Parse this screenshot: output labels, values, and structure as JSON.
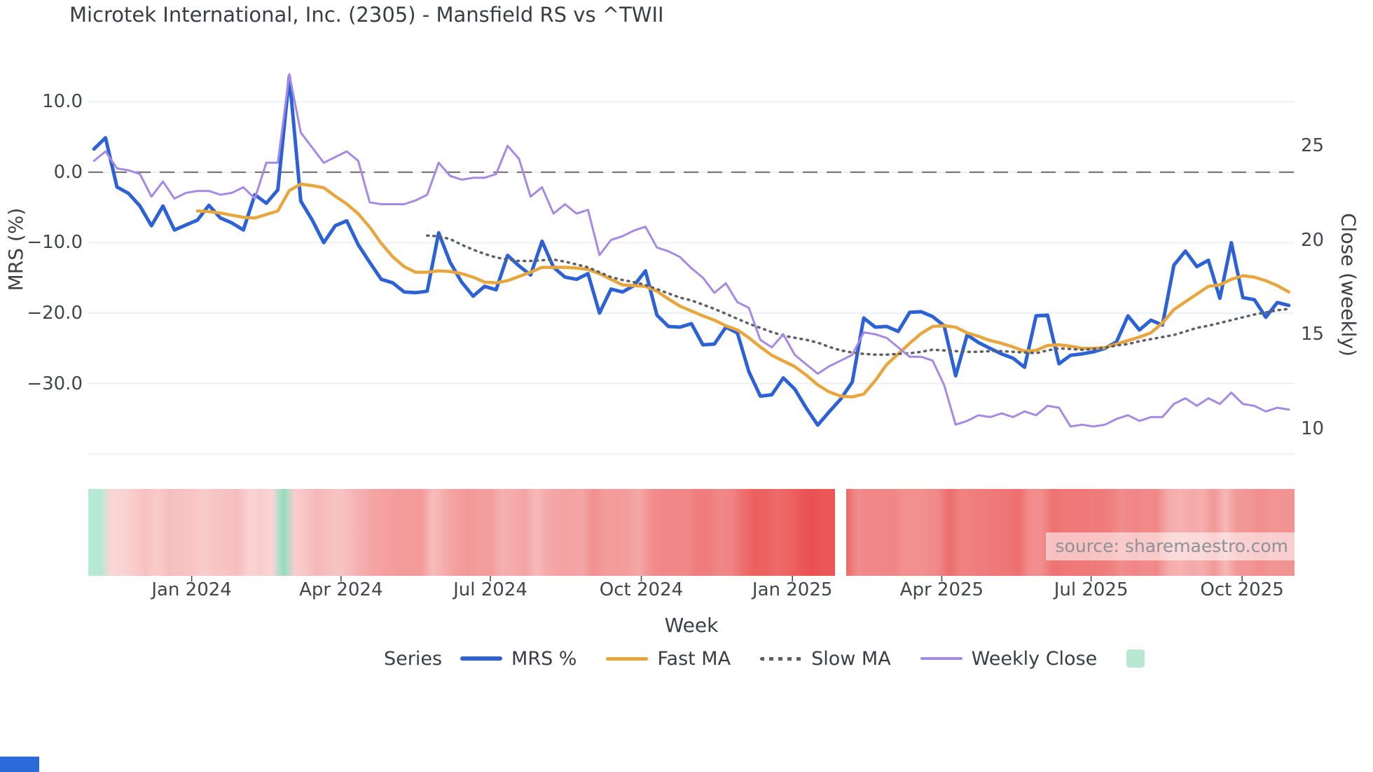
{
  "title": "Microtek International, Inc. (2305) - Mansfield RS vs ^TWII",
  "source": "source: sharemaestro.com",
  "legend": {
    "title": "Series",
    "items": [
      {
        "label": "MRS %"
      },
      {
        "label": "Fast MA"
      },
      {
        "label": "Slow MA"
      },
      {
        "label": "Weekly Close"
      },
      {
        "label": "",
        "type": "heatmap-swatch"
      }
    ]
  },
  "chart_data": {
    "type": "line",
    "title": "Microtek International, Inc. (2305) - Mansfield RS vs ^TWII",
    "x_axis": {
      "label": "Week",
      "tick_labels": [
        "Jan 2024",
        "Apr 2024",
        "Jul 2024",
        "Oct 2024",
        "Jan 2025",
        "Apr 2025",
        "Jul 2025",
        "Oct 2025"
      ],
      "tick_week_positions": [
        9.0,
        22.0,
        35.0,
        48.14,
        61.29,
        74.29,
        87.29,
        100.43
      ]
    },
    "y_left": {
      "label": "MRS (%)",
      "tick_values": [
        10,
        0,
        -10,
        -20,
        -30
      ],
      "tick_labels": [
        "10.0",
        "0.0",
        "−10.0",
        "−20.0",
        "−30.0"
      ],
      "range": [
        -40.2,
        15.5
      ],
      "zero_reference_line": 0
    },
    "y_right": {
      "label": "Close (weekly)",
      "tick_values": [
        25,
        20,
        15,
        10
      ],
      "tick_labels": [
        "25",
        "20",
        "15",
        "10"
      ],
      "range": [
        8.57,
        29.39
      ]
    },
    "weeks": 105,
    "gap_week_index": 65,
    "series": [
      {
        "name": "MRS %",
        "axis": "left",
        "color": "#2d62d6",
        "style": "solid",
        "width": 5,
        "start_index": 0,
        "values": [
          3.3,
          4.9,
          -2.1,
          -3.0,
          -4.8,
          -7.6,
          -4.8,
          -8.2,
          -7.5,
          -6.8,
          -4.7,
          -6.5,
          -7.2,
          -8.2,
          -3.2,
          -4.4,
          -2.5,
          13.6,
          -4.1,
          -6.8,
          -10.0,
          -7.6,
          -6.9,
          -10.3,
          -12.8,
          -15.2,
          -15.7,
          -17.0,
          -17.1,
          -16.9,
          -8.6,
          -12.8,
          -15.6,
          -17.6,
          -16.2,
          -16.7,
          -11.8,
          -13.3,
          -14.6,
          -9.8,
          -13.5,
          -14.9,
          -15.2,
          -14.4,
          -20.0,
          -16.6,
          -17.0,
          -16.1,
          -14.0,
          -20.3,
          -21.9,
          -22.0,
          -21.5,
          -24.5,
          -24.4,
          -22.0,
          -22.8,
          -28.3,
          -31.8,
          -31.6,
          -29.2,
          -30.8,
          -33.5,
          -35.9,
          -34.0,
          -32.2,
          -29.8,
          -20.7,
          -22.0,
          -21.9,
          -22.6,
          -19.9,
          -19.8,
          -20.5,
          -21.8,
          -28.9,
          -23.1,
          -24.2,
          -25.0,
          -25.8,
          -26.4,
          -27.7,
          -20.4,
          -20.3,
          -27.2,
          -26.0,
          -25.8,
          -25.5,
          -25.0,
          -24.1,
          -20.4,
          -22.4,
          -21.0,
          -21.7,
          -13.2,
          -11.2,
          -13.4,
          -12.5,
          -17.9,
          -10.0,
          -17.8,
          -18.1,
          -20.6,
          -18.5,
          -18.9
        ]
      },
      {
        "name": "Fast MA",
        "axis": "left",
        "color": "#e8a63e",
        "style": "solid",
        "width": 4.5,
        "start_index": 9,
        "values": [
          -5.5,
          -5.6,
          -5.8,
          -6.1,
          -6.4,
          -6.5,
          -6.0,
          -5.5,
          -2.6,
          -1.7,
          -1.9,
          -2.2,
          -3.4,
          -4.5,
          -5.9,
          -7.8,
          -10.1,
          -12.0,
          -13.4,
          -14.2,
          -14.2,
          -14.0,
          -14.1,
          -14.4,
          -14.9,
          -15.6,
          -15.7,
          -15.4,
          -14.8,
          -14.2,
          -13.5,
          -13.5,
          -13.5,
          -13.6,
          -13.8,
          -14.4,
          -15.2,
          -16.0,
          -16.1,
          -16.2,
          -16.9,
          -18.0,
          -19.0,
          -19.7,
          -20.4,
          -21.0,
          -21.8,
          -22.4,
          -23.5,
          -24.8,
          -26.0,
          -26.8,
          -27.6,
          -28.8,
          -30.2,
          -31.2,
          -31.8,
          -31.9,
          -31.5,
          -29.6,
          -27.3,
          -25.8,
          -24.3,
          -22.9,
          -21.9,
          -21.8,
          -22.0,
          -22.8,
          -23.3,
          -23.9,
          -24.3,
          -24.8,
          -25.4,
          -25.3,
          -24.6,
          -24.5,
          -24.7,
          -25.0,
          -25.0,
          -24.9,
          -24.4,
          -23.9,
          -23.4,
          -22.8,
          -21.4,
          -19.5,
          -18.4,
          -17.3,
          -16.2,
          -16.0,
          -15.2,
          -14.7,
          -14.9,
          -15.4,
          -16.1,
          -17.0
        ]
      },
      {
        "name": "Slow MA",
        "axis": "left",
        "color": "#5d6066",
        "style": "dotted",
        "width": 3.5,
        "start_index": 29,
        "values": [
          -9.0,
          -9.1,
          -9.5,
          -10.3,
          -11.0,
          -11.6,
          -12.1,
          -12.4,
          -12.6,
          -12.6,
          -12.5,
          -12.4,
          -12.7,
          -13.1,
          -13.5,
          -14.2,
          -14.9,
          -15.3,
          -15.6,
          -16.0,
          -16.6,
          -17.2,
          -17.8,
          -18.2,
          -18.8,
          -19.4,
          -20.1,
          -20.8,
          -21.5,
          -22.1,
          -22.7,
          -23.2,
          -23.5,
          -23.8,
          -24.2,
          -24.8,
          -25.3,
          -25.6,
          -25.8,
          -25.9,
          -25.9,
          -25.8,
          -25.7,
          -25.5,
          -25.2,
          -25.3,
          -25.4,
          -25.5,
          -25.5,
          -25.4,
          -25.4,
          -25.5,
          -25.6,
          -25.7,
          -25.3,
          -25.0,
          -25.1,
          -25.2,
          -25.1,
          -24.9,
          -24.6,
          -24.4,
          -24.0,
          -23.7,
          -23.4,
          -23.1,
          -22.6,
          -22.1,
          -21.8,
          -21.4,
          -21.0,
          -20.6,
          -20.2,
          -19.9,
          -19.6,
          -19.4
        ]
      },
      {
        "name": "Weekly Close",
        "axis": "right",
        "color": "#a689e4",
        "style": "solid",
        "width": 3,
        "start_index": 0,
        "values": [
          24.2,
          24.7,
          23.8,
          23.7,
          23.5,
          22.3,
          23.1,
          22.2,
          22.5,
          22.6,
          22.6,
          22.4,
          22.5,
          22.8,
          22.2,
          24.1,
          24.1,
          28.8,
          25.7,
          24.9,
          24.1,
          24.4,
          24.7,
          24.2,
          22.0,
          21.9,
          21.9,
          21.9,
          22.1,
          22.4,
          24.1,
          23.4,
          23.2,
          23.3,
          23.3,
          23.5,
          25.0,
          24.3,
          22.3,
          22.8,
          21.4,
          21.9,
          21.4,
          21.6,
          19.2,
          20.0,
          20.2,
          20.5,
          20.7,
          19.6,
          19.4,
          19.1,
          18.5,
          18.0,
          17.2,
          17.7,
          16.7,
          16.4,
          14.7,
          14.3,
          15.0,
          13.9,
          13.4,
          12.9,
          13.3,
          13.6,
          13.9,
          15.1,
          15.0,
          14.8,
          14.3,
          13.8,
          13.8,
          13.6,
          12.3,
          10.2,
          10.4,
          10.7,
          10.6,
          10.8,
          10.6,
          10.9,
          10.7,
          11.2,
          11.1,
          10.1,
          10.2,
          10.1,
          10.2,
          10.5,
          10.7,
          10.4,
          10.6,
          10.6,
          11.3,
          11.6,
          11.2,
          11.6,
          11.3,
          11.9,
          11.3,
          11.2,
          10.9,
          11.1,
          11.0
        ]
      }
    ],
    "heatmap": {
      "based_on": "MRS %",
      "positive_color": "#8fdfbf",
      "negative_color": "#e84040",
      "gap_week_index": 65,
      "legend_swatch_color": "#b9e8d2"
    },
    "style": {
      "grid_color": "#e9edf1",
      "zero_line_color": "#7d7d82",
      "text_color": "#3c4147"
    }
  }
}
